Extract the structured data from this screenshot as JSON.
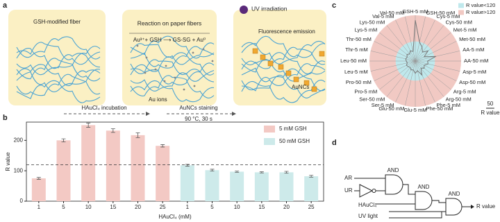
{
  "panel_labels": [
    "a",
    "b",
    "c",
    "d"
  ],
  "schematic": {
    "box1_label": "GSH-modified fiber",
    "box2_title": "Reaction on paper fibers",
    "box2_equation": "Au³⁺+ GSH ⟶ GS-SG + Au⁰",
    "box2_label": "Au ions",
    "box3_title": "UV irradiation",
    "box3_emission": "Fluorescence emission",
    "box3_label": "AuNCs",
    "step1": "HAuCl₄ incubation",
    "step2": "AuNCs staining",
    "step2_condition": "90 °C, 30 s"
  },
  "chart_data": [
    {
      "type": "bar",
      "y_label": "R value",
      "x_label": "HAuCl₄ (mM)",
      "categories": [
        "1",
        "5",
        "10",
        "15",
        "20",
        "25",
        "1",
        "5",
        "10",
        "15",
        "20",
        "25"
      ],
      "series": [
        {
          "name": "5 mM GSH",
          "color": "#f3c9c4",
          "values": [
            75,
            200,
            250,
            232,
            217,
            182,
            null,
            null,
            null,
            null,
            null,
            null
          ],
          "errors": [
            3,
            5,
            7,
            6,
            8,
            4,
            null,
            null,
            null,
            null,
            null,
            null
          ]
        },
        {
          "name": "50 mM GSH",
          "color": "#cdeaea",
          "values": [
            null,
            null,
            null,
            null,
            null,
            null,
            118,
            102,
            97,
            95,
            95,
            82
          ],
          "errors": [
            null,
            null,
            null,
            null,
            null,
            null,
            3,
            3,
            2,
            2,
            3,
            3
          ]
        }
      ],
      "ylim": [
        0,
        260
      ],
      "yticks": [
        0,
        100,
        200
      ],
      "reference_line": 120
    },
    {
      "type": "radar",
      "categories": [
        "GSH-5 mM",
        "GSH-50 mM",
        "Cys-5 mM",
        "Cys-50 mM",
        "Met-5 mM",
        "Met-50 mM",
        "AA-5 mM",
        "AA-50 mM",
        "Asp-5 mM",
        "Asp-50 mM",
        "Arg-5 mM",
        "Arg-50 mM",
        "Phe-5 mM",
        "Phe-50 mM",
        "Glu-5 mM",
        "Glu-50 mM",
        "Ser-5 mM",
        "Ser-50 mM",
        "Pro-5 mM",
        "Pro-50 mM",
        "Leu-5 mM",
        "Leu-50 mM",
        "Thr-5 mM",
        "Thr-50 mM",
        "Lys-5 mM",
        "Lys-50 mM",
        "Val-5 mM",
        "Val-50 mM"
      ],
      "values": [
        250,
        118,
        95,
        70,
        100,
        60,
        130,
        75,
        80,
        60,
        70,
        55,
        95,
        60,
        75,
        55,
        60,
        50,
        55,
        60,
        50,
        55,
        60,
        55,
        65,
        55,
        70,
        60
      ],
      "color": "#777777",
      "rlim": [
        0,
        280
      ],
      "threshold": 120,
      "legend": [
        {
          "name": "R value<120",
          "color": "#bfe8ec"
        },
        {
          "name": "R value>120",
          "color": "#f1c9c3"
        }
      ],
      "scale_bar": {
        "value": 50,
        "label": "R value"
      }
    }
  ],
  "logic": {
    "inputs": [
      "AR",
      "UR",
      "HAuCl₄",
      "UV light"
    ],
    "gates": [
      "AND",
      "AND",
      "AND"
    ],
    "output": "R value"
  }
}
